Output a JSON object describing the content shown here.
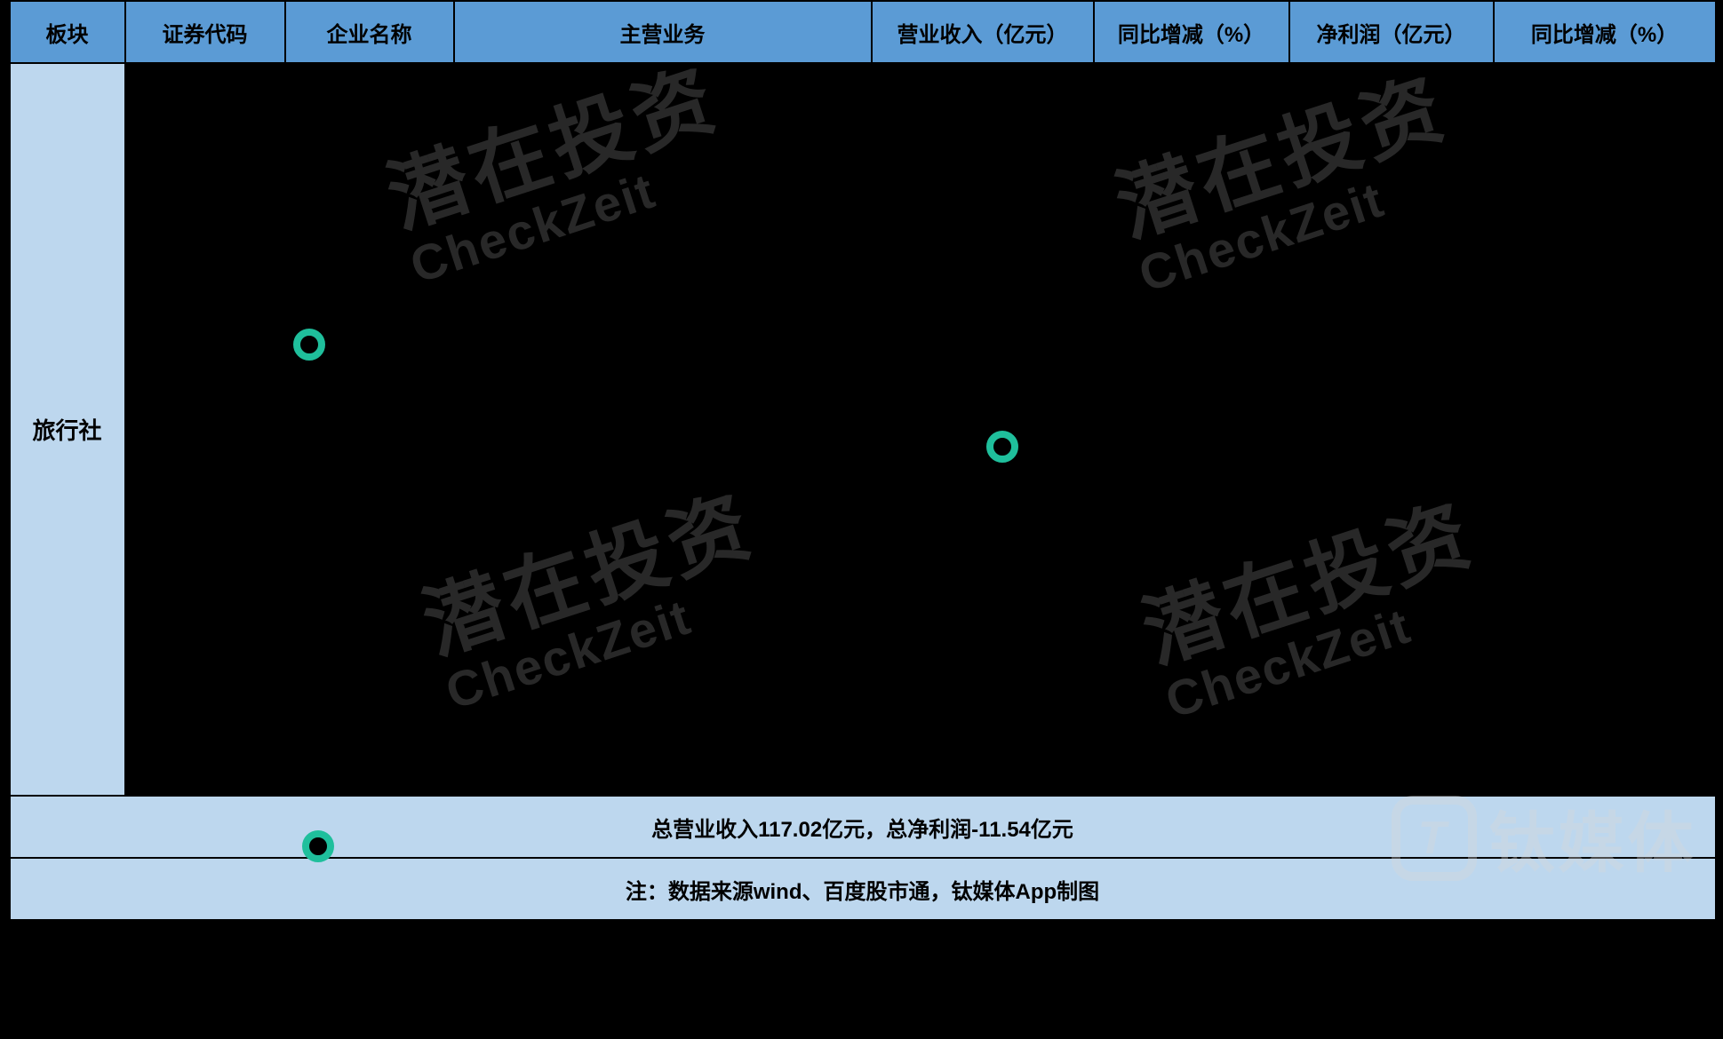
{
  "colors": {
    "header_bg": "#5b9bd5",
    "section_bg": "#bdd7ee",
    "summary_bg": "#bdd7ee",
    "body_bg": "#000000",
    "border": "#000000",
    "text": "#000000",
    "watermark": "#4a4a4a",
    "brand": "#d9d9d9",
    "accent_green": "#1fbf9c"
  },
  "typography": {
    "header_fontsize": 24,
    "cell_fontsize": 22,
    "section_fontsize": 26,
    "watermark_cn_fontsize": 90,
    "watermark_en_fontsize": 56,
    "brand_fontsize": 74
  },
  "columns": [
    {
      "key": "sector",
      "label": "板块"
    },
    {
      "key": "code",
      "label": "证券代码"
    },
    {
      "key": "name",
      "label": "企业名称"
    },
    {
      "key": "biz",
      "label": "主营业务"
    },
    {
      "key": "revenue",
      "label": "营业收入（亿元）"
    },
    {
      "key": "rev_yoy",
      "label": "同比增减（%）"
    },
    {
      "key": "profit",
      "label": "净利润（亿元）"
    },
    {
      "key": "profit_yoy",
      "label": "同比增减（%）"
    }
  ],
  "section_label": "旅行社",
  "rows": [
    {
      "code": "",
      "name": "",
      "biz": "",
      "revenue": "",
      "rev_yoy": "",
      "profit": "",
      "profit_yoy": ""
    },
    {
      "code": "",
      "name": "",
      "biz": "",
      "revenue": "",
      "rev_yoy": "",
      "profit": "",
      "profit_yoy": ""
    },
    {
      "code": "",
      "name": "",
      "biz": "",
      "revenue": "",
      "rev_yoy": "",
      "profit": "",
      "profit_yoy": ""
    },
    {
      "code": "",
      "name": "",
      "biz": "",
      "revenue": "",
      "rev_yoy": "",
      "profit": "",
      "profit_yoy": ""
    },
    {
      "code": "",
      "name": "",
      "biz": "",
      "revenue": "",
      "rev_yoy": "",
      "profit": "",
      "profit_yoy": ""
    },
    {
      "code": "",
      "name": "",
      "biz": "",
      "revenue": "",
      "rev_yoy": "",
      "profit": "",
      "profit_yoy": ""
    },
    {
      "code": "",
      "name": "",
      "biz": "",
      "revenue": "",
      "rev_yoy": "",
      "profit": "",
      "profit_yoy": ""
    },
    {
      "code": "",
      "name": "",
      "biz": "",
      "revenue": "",
      "rev_yoy": "",
      "profit": "",
      "profit_yoy": ""
    },
    {
      "code": "",
      "name": "",
      "biz": "",
      "revenue": "",
      "rev_yoy": "",
      "profit": "",
      "profit_yoy": ""
    },
    {
      "code": "",
      "name": "",
      "biz": "",
      "revenue": "",
      "rev_yoy": "",
      "profit": "",
      "profit_yoy": ""
    },
    {
      "code": "",
      "name": "",
      "biz": "",
      "revenue": "",
      "rev_yoy": "",
      "profit": "",
      "profit_yoy": ""
    }
  ],
  "summary_text": "总营业收入117.02亿元，总净利润-11.54亿元",
  "note_text": "注：数据来源wind、百度股市通，钛媒体App制图",
  "watermark": {
    "cn": "潜在投资",
    "en": "CheckZeit"
  },
  "brand_text": "钛媒体",
  "brand_logo_text": "T"
}
